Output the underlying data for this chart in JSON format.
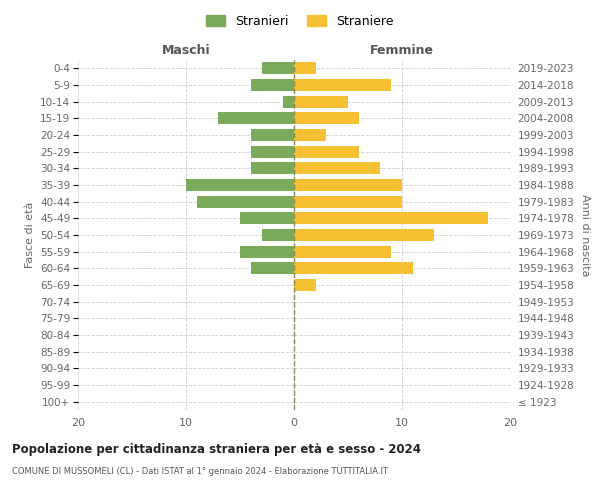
{
  "age_groups": [
    "100+",
    "95-99",
    "90-94",
    "85-89",
    "80-84",
    "75-79",
    "70-74",
    "65-69",
    "60-64",
    "55-59",
    "50-54",
    "45-49",
    "40-44",
    "35-39",
    "30-34",
    "25-29",
    "20-24",
    "15-19",
    "10-14",
    "5-9",
    "0-4"
  ],
  "birth_years": [
    "≤ 1923",
    "1924-1928",
    "1929-1933",
    "1934-1938",
    "1939-1943",
    "1944-1948",
    "1949-1953",
    "1954-1958",
    "1959-1963",
    "1964-1968",
    "1969-1973",
    "1974-1978",
    "1979-1983",
    "1984-1988",
    "1989-1993",
    "1994-1998",
    "1999-2003",
    "2004-2008",
    "2009-2013",
    "2014-2018",
    "2019-2023"
  ],
  "maschi": [
    0,
    0,
    0,
    0,
    0,
    0,
    0,
    0,
    4,
    5,
    3,
    5,
    9,
    10,
    4,
    4,
    4,
    7,
    1,
    4,
    3
  ],
  "femmine": [
    0,
    0,
    0,
    0,
    0,
    0,
    0,
    2,
    11,
    9,
    13,
    18,
    10,
    10,
    8,
    6,
    3,
    6,
    5,
    9,
    2
  ],
  "color_maschi": "#7aab5a",
  "color_femmine": "#f5c034",
  "background_color": "#ffffff",
  "grid_color": "#cccccc",
  "title": "Popolazione per cittadinanza straniera per età e sesso - 2024",
  "subtitle": "COMUNE DI MUSSOMELI (CL) - Dati ISTAT al 1° gennaio 2024 - Elaborazione TUTTITALIA.IT",
  "xlabel_left": "Maschi",
  "xlabel_right": "Femmine",
  "ylabel_left": "Fasce di età",
  "ylabel_right": "Anni di nascita",
  "legend_maschi": "Stranieri",
  "legend_femmine": "Straniere",
  "xlim": 20,
  "dashed_line_color": "#888855"
}
